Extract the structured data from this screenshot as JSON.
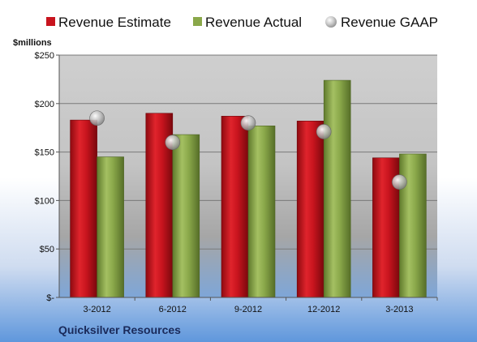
{
  "chart_data": {
    "type": "bar",
    "categories": [
      "3-2012",
      "6-2012",
      "9-2012",
      "12-2012",
      "3-2013"
    ],
    "series": [
      {
        "name": "Revenue Estimate",
        "kind": "bar",
        "color": "#c8141e",
        "values": [
          183,
          190,
          187,
          182,
          144
        ]
      },
      {
        "name": "Revenue Actual",
        "kind": "bar",
        "color": "#8aa84a",
        "values": [
          145,
          168,
          177,
          224,
          148
        ]
      },
      {
        "name": "Revenue GAAP",
        "kind": "marker",
        "color": "#b8b8b8",
        "values": [
          185,
          160,
          180,
          171,
          119
        ]
      }
    ],
    "ylabel": "$millions",
    "ylim": [
      0,
      250
    ],
    "yticks": [
      0,
      50,
      100,
      150,
      200,
      250
    ],
    "ytick_labels": [
      "$-",
      "$50",
      "$100",
      "$150",
      "$200",
      "$250"
    ],
    "grid": true,
    "legend_position": "top",
    "company": "Quicksilver Resources"
  }
}
